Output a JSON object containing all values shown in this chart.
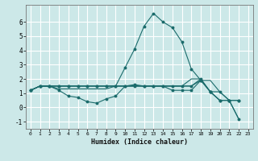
{
  "title": "",
  "xlabel": "Humidex (Indice chaleur)",
  "ylabel": "",
  "background_color": "#cce8e8",
  "grid_color": "#ffffff",
  "line_color": "#1a6b6b",
  "xlim": [
    -0.5,
    23.5
  ],
  "ylim": [
    -1.5,
    7.2
  ],
  "yticks": [
    -1,
    0,
    1,
    2,
    3,
    4,
    5,
    6
  ],
  "xticks": [
    0,
    1,
    2,
    3,
    4,
    5,
    6,
    7,
    8,
    9,
    10,
    11,
    12,
    13,
    14,
    15,
    16,
    17,
    18,
    19,
    20,
    21,
    22,
    23
  ],
  "series": [
    {
      "x": [
        0,
        1,
        2,
        3,
        4,
        5,
        6,
        7,
        8,
        9,
        10,
        11,
        12,
        13,
        14,
        15,
        16,
        17,
        18,
        19,
        20,
        21,
        22
      ],
      "y": [
        1.2,
        1.5,
        1.5,
        1.3,
        1.3,
        1.3,
        1.3,
        1.3,
        1.3,
        1.5,
        1.5,
        1.5,
        1.5,
        1.5,
        1.5,
        1.5,
        1.5,
        1.5,
        1.9,
        1.9,
        1.1,
        0.5,
        0.5
      ],
      "marker": false
    },
    {
      "x": [
        0,
        1,
        2,
        3,
        4,
        5,
        6,
        7,
        8,
        9,
        10,
        11,
        12,
        13,
        14,
        15,
        16,
        17,
        18,
        19,
        20,
        21,
        22
      ],
      "y": [
        1.2,
        1.5,
        1.5,
        1.2,
        0.8,
        0.7,
        0.4,
        0.3,
        0.6,
        0.8,
        1.5,
        1.6,
        1.5,
        1.5,
        1.5,
        1.2,
        1.2,
        1.2,
        1.9,
        1.1,
        1.1,
        0.5,
        0.5
      ],
      "marker": true
    },
    {
      "x": [
        0,
        1,
        2,
        3,
        4,
        5,
        6,
        7,
        8,
        9,
        10,
        11,
        12,
        13,
        14,
        15,
        16,
        17,
        18,
        19,
        20,
        21,
        22
      ],
      "y": [
        1.2,
        1.5,
        1.5,
        1.5,
        1.5,
        1.5,
        1.5,
        1.5,
        1.5,
        1.5,
        2.8,
        4.1,
        5.7,
        6.6,
        6.0,
        5.6,
        4.6,
        2.7,
        1.9,
        1.1,
        0.5,
        0.5,
        0.5
      ],
      "marker": true
    },
    {
      "x": [
        0,
        1,
        2,
        3,
        4,
        5,
        6,
        7,
        8,
        9,
        10,
        11,
        12,
        13,
        14,
        15,
        16,
        17,
        18,
        19,
        20,
        21,
        22
      ],
      "y": [
        1.2,
        1.5,
        1.5,
        1.5,
        1.5,
        1.5,
        1.5,
        1.5,
        1.5,
        1.5,
        1.5,
        1.5,
        1.5,
        1.5,
        1.5,
        1.5,
        1.5,
        2.0,
        2.0,
        1.1,
        0.5,
        0.5,
        -0.8
      ],
      "marker": false
    },
    {
      "x": [
        0,
        1,
        2,
        3,
        4,
        5,
        6,
        7,
        8,
        9,
        10,
        11,
        12,
        13,
        14,
        15,
        16,
        17,
        18,
        19,
        20,
        21,
        22
      ],
      "y": [
        1.2,
        1.5,
        1.5,
        1.5,
        1.5,
        1.5,
        1.5,
        1.5,
        1.5,
        1.5,
        1.5,
        1.5,
        1.5,
        1.5,
        1.5,
        1.5,
        1.5,
        1.5,
        2.0,
        1.1,
        0.5,
        0.5,
        -0.8
      ],
      "marker": true
    }
  ]
}
